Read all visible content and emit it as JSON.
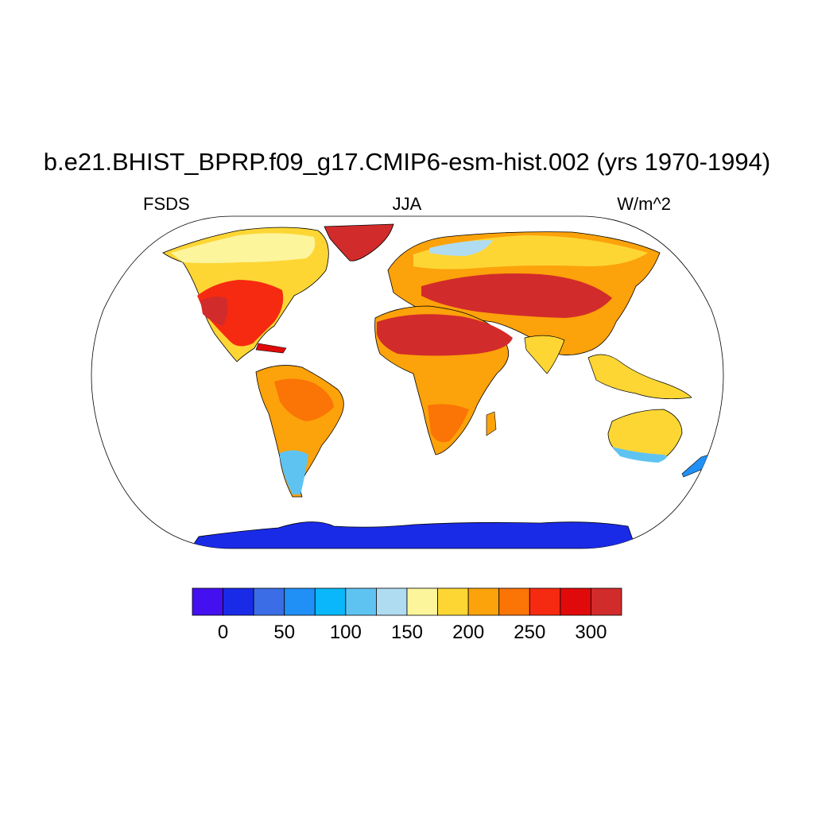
{
  "title": "b.e21.BHIST_BPRP.f09_g17.CMIP6-esm-hist.002 (yrs 1970-1994)",
  "variable": "FSDS",
  "season": "JJA",
  "units": "W/m^2",
  "colorbar": {
    "colors": [
      "#4410F0",
      "#1A2BE8",
      "#3B6EE6",
      "#2090F6",
      "#09B7FA",
      "#5FC3F2",
      "#B0DCF2",
      "#FDF59C",
      "#FDD634",
      "#FCA20A",
      "#FB7406",
      "#F62A10",
      "#E10A0A",
      "#D22B2B"
    ],
    "tick_labels": [
      "0",
      "50",
      "100",
      "150",
      "200",
      "250",
      "300"
    ]
  },
  "regions": [
    {
      "name": "Antarctica",
      "value": 20
    },
    {
      "name": "Greenland",
      "value": 300
    },
    {
      "name": "Sahara & Arabia",
      "value": 310
    },
    {
      "name": "Southwest North America",
      "value": 300
    },
    {
      "name": "Central Asia & Tibet",
      "value": 300
    },
    {
      "name": "Amazon",
      "value": 230
    },
    {
      "name": "Australia",
      "value": 170
    },
    {
      "name": "Patagonia",
      "value": 90
    }
  ]
}
